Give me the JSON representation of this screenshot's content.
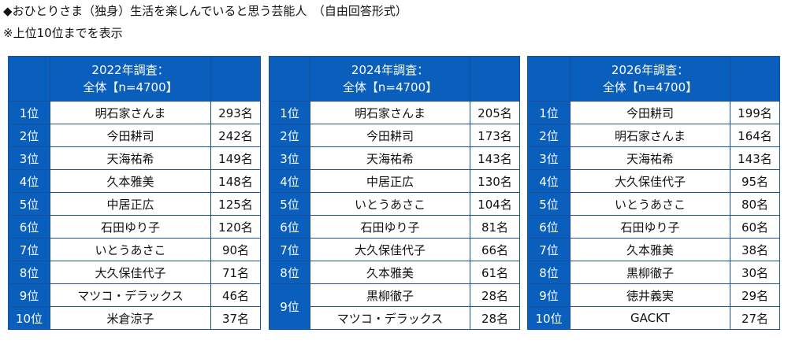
{
  "title": "◆おひとりさま（独身）生活を楽しんでいると思う芸能人　（自由回答形式）",
  "note": "※上位10位までを表示",
  "panels": [
    {
      "header_line1": "2022年調査：",
      "header_line2": "全体【n=4700】",
      "rows": [
        {
          "rank": "1位",
          "name": "明石家さんま",
          "count": "293名"
        },
        {
          "rank": "2位",
          "name": "今田耕司",
          "count": "242名"
        },
        {
          "rank": "3位",
          "name": "天海祐希",
          "count": "149名"
        },
        {
          "rank": "4位",
          "name": "久本雅美",
          "count": "148名"
        },
        {
          "rank": "5位",
          "name": "中居正広",
          "count": "125名"
        },
        {
          "rank": "6位",
          "name": "石田ゆり子",
          "count": "120名"
        },
        {
          "rank": "7位",
          "name": "いとうあさこ",
          "count": "90名"
        },
        {
          "rank": "8位",
          "name": "大久保佳代子",
          "count": "71名"
        },
        {
          "rank": "9位",
          "name": "マツコ・デラックス",
          "count": "46名"
        },
        {
          "rank": "10位",
          "name": "米倉涼子",
          "count": "37名"
        }
      ]
    },
    {
      "header_line1": "2024年調査：",
      "header_line2": "全体【n=4700】",
      "rows": [
        {
          "rank": "1位",
          "name": "明石家さんま",
          "count": "205名"
        },
        {
          "rank": "2位",
          "name": "今田耕司",
          "count": "173名"
        },
        {
          "rank": "3位",
          "name": "天海祐希",
          "count": "143名"
        },
        {
          "rank": "4位",
          "name": "中居正広",
          "count": "130名"
        },
        {
          "rank": "5位",
          "name": "いとうあさこ",
          "count": "104名"
        },
        {
          "rank": "6位",
          "name": "石田ゆり子",
          "count": "81名"
        },
        {
          "rank": "7位",
          "name": "大久保佳代子",
          "count": "66名"
        },
        {
          "rank": "8位",
          "name": "久本雅美",
          "count": "61名"
        },
        {
          "rank": "9位",
          "name": "黒柳徹子",
          "count": "28名"
        },
        {
          "rank": "",
          "name": "マツコ・デラックス",
          "count": "28名"
        }
      ]
    },
    {
      "header_line1": "2026年調査：",
      "header_line2": "全体【n=4700】",
      "rows": [
        {
          "rank": "1位",
          "name": "今田耕司",
          "count": "199名"
        },
        {
          "rank": "2位",
          "name": "明石家さんま",
          "count": "164名"
        },
        {
          "rank": "3位",
          "name": "天海祐希",
          "count": "143名"
        },
        {
          "rank": "4位",
          "name": "大久保佳代子",
          "count": "95名"
        },
        {
          "rank": "5位",
          "name": "いとうあさこ",
          "count": "80名"
        },
        {
          "rank": "6位",
          "name": "石田ゆり子",
          "count": "60名"
        },
        {
          "rank": "7位",
          "name": "久本雅美",
          "count": "38名"
        },
        {
          "rank": "8位",
          "name": "黒柳徹子",
          "count": "30名"
        },
        {
          "rank": "9位",
          "name": "徳井義実",
          "count": "29名"
        },
        {
          "rank": "10位",
          "name": "GACKT",
          "count": "27名"
        }
      ]
    }
  ]
}
